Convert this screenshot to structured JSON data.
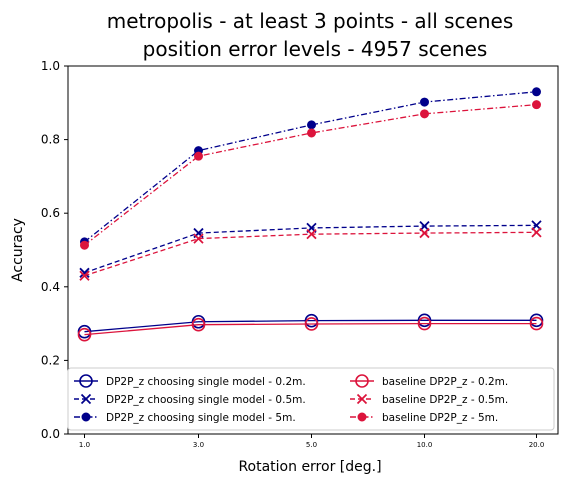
{
  "chart_data": {
    "type": "line",
    "title": [
      "metropolis - at least 3 points - all scenes",
      "position error levels - 4957 scenes"
    ],
    "xlabel": "Rotation error [deg.]",
    "ylabel": "Accuracy",
    "categories": [
      "1.0",
      "3.0",
      "5.0",
      "10.0",
      "20.0"
    ],
    "ylim": [
      0.0,
      1.0
    ],
    "yticks": [
      "0.0",
      "0.2",
      "0.4",
      "0.6",
      "0.8",
      "1.0"
    ],
    "legend_position": "lower-left",
    "legend_columns": 2,
    "colors": {
      "navy": "#00008b",
      "crimson": "#dc143c"
    },
    "series": [
      {
        "name": "DP2P_z choosing single model - 0.2m.",
        "values": [
          0.278,
          0.305,
          0.308,
          0.309,
          0.309
        ],
        "color": "#00008b",
        "linestyle": "solid",
        "marker": "open-circle"
      },
      {
        "name": "DP2P_z choosing single model - 0.5m.",
        "values": [
          0.438,
          0.546,
          0.56,
          0.565,
          0.567
        ],
        "color": "#00008b",
        "linestyle": "dashed",
        "marker": "x"
      },
      {
        "name": "DP2P_z choosing single model - 5m.",
        "values": [
          0.522,
          0.77,
          0.84,
          0.902,
          0.93
        ],
        "color": "#00008b",
        "linestyle": "dashdot",
        "marker": "dot"
      },
      {
        "name": "baseline DP2P_z - 0.2m.",
        "values": [
          0.27,
          0.297,
          0.299,
          0.3,
          0.3
        ],
        "color": "#dc143c",
        "linestyle": "solid",
        "marker": "open-circle"
      },
      {
        "name": "baseline DP2P_z - 0.5m.",
        "values": [
          0.43,
          0.531,
          0.543,
          0.546,
          0.548
        ],
        "color": "#dc143c",
        "linestyle": "dashed",
        "marker": "x"
      },
      {
        "name": "baseline DP2P_z - 5m.",
        "values": [
          0.513,
          0.755,
          0.818,
          0.87,
          0.895
        ],
        "color": "#dc143c",
        "linestyle": "dashdot",
        "marker": "dot"
      }
    ]
  }
}
